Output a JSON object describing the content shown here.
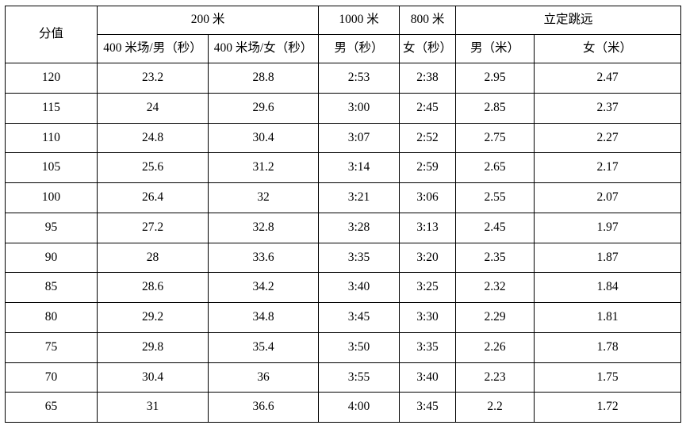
{
  "colors": {
    "background": "#ffffff",
    "border": "#000000",
    "text": "#000000"
  },
  "table": {
    "headers": {
      "score": "分值",
      "event_200m": "200 米",
      "sub_200m_male": "400 米场/男（秒）",
      "sub_200m_female": "400 米场/女（秒）",
      "event_1000m": "1000 米",
      "sub_1000m_male": "男（秒）",
      "event_800m": "800 米",
      "sub_800m_female": "女（秒）",
      "event_standing_long_jump": "立定跳远",
      "sub_jump_male": "男（米）",
      "sub_jump_female": "女（米）"
    },
    "column_semantics": [
      "score",
      "200m-400m-track-male-seconds",
      "200m-400m-track-female-seconds",
      "1000m-male-time",
      "800m-female-time",
      "standing-long-jump-male-meters",
      "standing-long-jump-female-meters"
    ],
    "rows": [
      [
        "120",
        "23.2",
        "28.8",
        "2:53",
        "2:38",
        "2.95",
        "2.47"
      ],
      [
        "115",
        "24",
        "29.6",
        "3:00",
        "2:45",
        "2.85",
        "2.37"
      ],
      [
        "110",
        "24.8",
        "30.4",
        "3:07",
        "2:52",
        "2.75",
        "2.27"
      ],
      [
        "105",
        "25.6",
        "31.2",
        "3:14",
        "2:59",
        "2.65",
        "2.17"
      ],
      [
        "100",
        "26.4",
        "32",
        "3:21",
        "3:06",
        "2.55",
        "2.07"
      ],
      [
        "95",
        "27.2",
        "32.8",
        "3:28",
        "3:13",
        "2.45",
        "1.97"
      ],
      [
        "90",
        "28",
        "33.6",
        "3:35",
        "3:20",
        "2.35",
        "1.87"
      ],
      [
        "85",
        "28.6",
        "34.2",
        "3:40",
        "3:25",
        "2.32",
        "1.84"
      ],
      [
        "80",
        "29.2",
        "34.8",
        "3:45",
        "3:30",
        "2.29",
        "1.81"
      ],
      [
        "75",
        "29.8",
        "35.4",
        "3:50",
        "3:35",
        "2.26",
        "1.78"
      ],
      [
        "70",
        "30.4",
        "36",
        "3:55",
        "3:40",
        "2.23",
        "1.75"
      ],
      [
        "65",
        "31",
        "36.6",
        "4:00",
        "3:45",
        "2.2",
        "1.72"
      ]
    ]
  }
}
